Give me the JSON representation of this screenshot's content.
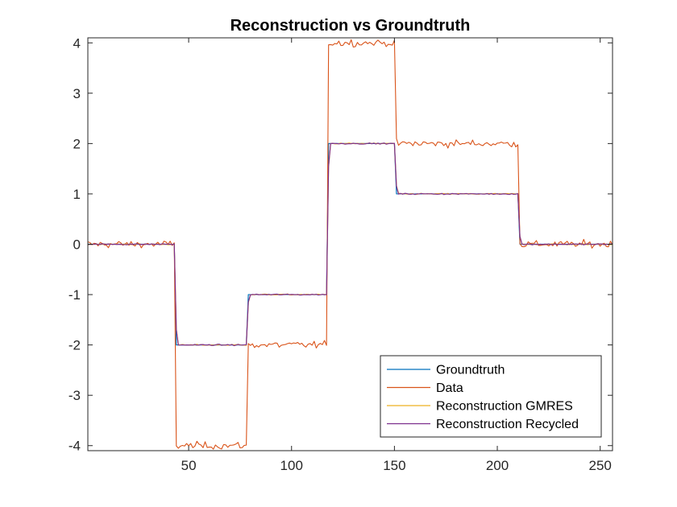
{
  "chart_data": {
    "type": "line",
    "title": "Reconstruction vs Groundtruth",
    "xlabel": "",
    "ylabel": "",
    "xlim": [
      1,
      256
    ],
    "ylim": [
      -4.1,
      4.1
    ],
    "xticks": [
      50,
      100,
      150,
      200,
      250
    ],
    "yticks": [
      -4,
      -3,
      -2,
      -1,
      0,
      1,
      2,
      3,
      4
    ],
    "xtick_labels": [
      "50",
      "100",
      "150",
      "200",
      "250"
    ],
    "ytick_labels": [
      "-4",
      "-3",
      "-2",
      "-1",
      "0",
      "1",
      "2",
      "3",
      "4"
    ],
    "grid": false,
    "box": true,
    "legend_location": "bottom-right",
    "signal_segments": [
      {
        "x_start": 1,
        "x_end": 43,
        "value": 0
      },
      {
        "x_start": 44,
        "x_end": 78,
        "value": -2
      },
      {
        "x_start": 79,
        "x_end": 117,
        "value": -1
      },
      {
        "x_start": 118,
        "x_end": 150,
        "value": 2
      },
      {
        "x_start": 151,
        "x_end": 210,
        "value": 1
      },
      {
        "x_start": 211,
        "x_end": 256,
        "value": 0
      }
    ],
    "series": [
      {
        "name": "Groundtruth",
        "color": "#0072BD",
        "scale": 1,
        "noise": 0,
        "smooth": 0
      },
      {
        "name": "Data",
        "color": "#D95319",
        "scale": 2,
        "noise": 0.05,
        "smooth": 0
      },
      {
        "name": "Reconstruction GMRES",
        "color": "#EDB120",
        "scale": 1,
        "noise": 0.008,
        "smooth": 1
      },
      {
        "name": "Reconstruction Recycled",
        "color": "#7E2F8E",
        "scale": 1,
        "noise": 0.008,
        "smooth": 1
      }
    ]
  }
}
